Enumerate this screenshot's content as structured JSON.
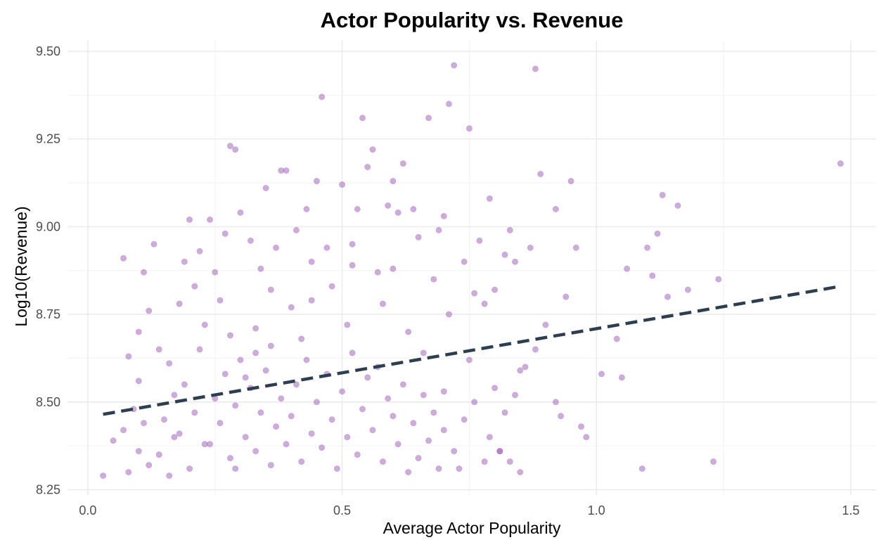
{
  "chart_data": {
    "type": "scatter",
    "title": "Actor Popularity vs. Revenue",
    "xlabel": "Average Actor Popularity",
    "ylabel": "Log10(Revenue)",
    "xlim": [
      -0.04,
      1.55
    ],
    "ylim": [
      8.235,
      9.53
    ],
    "x_ticks": [
      0.0,
      0.5,
      1.0,
      1.5
    ],
    "x_tick_labels": [
      "0.0",
      "0.5",
      "1.0",
      "1.5"
    ],
    "y_ticks": [
      8.25,
      8.5,
      8.75,
      9.0,
      9.25,
      9.5
    ],
    "y_tick_labels": [
      "8.25",
      "8.50",
      "8.75",
      "9.00",
      "9.25",
      "9.50"
    ],
    "grid": true,
    "legend": "none",
    "point_color": "#9b59b6",
    "point_opacity": 0.5,
    "trend_color": "#2c3e50",
    "series": [
      {
        "kind": "points",
        "points": [
          [
            0.03,
            8.29
          ],
          [
            0.05,
            8.39
          ],
          [
            0.07,
            8.42
          ],
          [
            0.08,
            8.3
          ],
          [
            0.09,
            8.48
          ],
          [
            0.1,
            8.36
          ],
          [
            0.11,
            8.44
          ],
          [
            0.12,
            8.32
          ],
          [
            0.07,
            8.91
          ],
          [
            0.08,
            8.63
          ],
          [
            0.11,
            8.87
          ],
          [
            0.13,
            8.95
          ],
          [
            0.1,
            8.56
          ],
          [
            0.12,
            8.76
          ],
          [
            0.1,
            8.7
          ],
          [
            0.14,
            8.35
          ],
          [
            0.15,
            8.45
          ],
          [
            0.16,
            8.61
          ],
          [
            0.17,
            8.52
          ],
          [
            0.18,
            8.41
          ],
          [
            0.19,
            8.55
          ],
          [
            0.2,
            8.31
          ],
          [
            0.21,
            8.47
          ],
          [
            0.22,
            8.65
          ],
          [
            0.18,
            8.78
          ],
          [
            0.19,
            8.9
          ],
          [
            0.2,
            9.02
          ],
          [
            0.22,
            8.93
          ],
          [
            0.24,
            9.02
          ],
          [
            0.21,
            8.83
          ],
          [
            0.23,
            8.72
          ],
          [
            0.16,
            8.29
          ],
          [
            0.24,
            8.38
          ],
          [
            0.25,
            8.51
          ],
          [
            0.26,
            8.44
          ],
          [
            0.27,
            8.58
          ],
          [
            0.28,
            8.34
          ],
          [
            0.29,
            8.49
          ],
          [
            0.3,
            8.62
          ],
          [
            0.31,
            8.4
          ],
          [
            0.27,
            8.98
          ],
          [
            0.28,
            9.23
          ],
          [
            0.29,
            9.22
          ],
          [
            0.3,
            9.04
          ],
          [
            0.32,
            8.96
          ],
          [
            0.25,
            8.87
          ],
          [
            0.26,
            8.79
          ],
          [
            0.28,
            8.69
          ],
          [
            0.32,
            8.54
          ],
          [
            0.33,
            8.36
          ],
          [
            0.34,
            8.47
          ],
          [
            0.35,
            8.59
          ],
          [
            0.36,
            8.32
          ],
          [
            0.37,
            8.43
          ],
          [
            0.38,
            8.51
          ],
          [
            0.39,
            8.38
          ],
          [
            0.33,
            8.71
          ],
          [
            0.34,
            8.88
          ],
          [
            0.35,
            9.11
          ],
          [
            0.37,
            8.94
          ],
          [
            0.38,
            9.16
          ],
          [
            0.39,
            9.16
          ],
          [
            0.36,
            8.82
          ],
          [
            0.33,
            8.64
          ],
          [
            0.4,
            8.46
          ],
          [
            0.41,
            8.55
          ],
          [
            0.42,
            8.33
          ],
          [
            0.43,
            8.62
          ],
          [
            0.44,
            8.41
          ],
          [
            0.45,
            8.5
          ],
          [
            0.46,
            8.37
          ],
          [
            0.47,
            8.58
          ],
          [
            0.4,
            8.77
          ],
          [
            0.41,
            8.99
          ],
          [
            0.43,
            9.05
          ],
          [
            0.44,
            8.9
          ],
          [
            0.45,
            9.13
          ],
          [
            0.46,
            9.37
          ],
          [
            0.47,
            8.94
          ],
          [
            0.42,
            8.68
          ],
          [
            0.48,
            8.45
          ],
          [
            0.49,
            8.31
          ],
          [
            0.5,
            8.53
          ],
          [
            0.51,
            8.4
          ],
          [
            0.52,
            8.64
          ],
          [
            0.53,
            8.35
          ],
          [
            0.54,
            8.48
          ],
          [
            0.55,
            8.57
          ],
          [
            0.48,
            8.83
          ],
          [
            0.5,
            9.12
          ],
          [
            0.52,
            8.95
          ],
          [
            0.53,
            9.05
          ],
          [
            0.54,
            9.31
          ],
          [
            0.55,
            9.17
          ],
          [
            0.56,
            9.22
          ],
          [
            0.51,
            8.72
          ],
          [
            0.56,
            8.42
          ],
          [
            0.57,
            8.6
          ],
          [
            0.58,
            8.33
          ],
          [
            0.59,
            8.51
          ],
          [
            0.6,
            8.46
          ],
          [
            0.61,
            8.38
          ],
          [
            0.62,
            8.55
          ],
          [
            0.63,
            8.3
          ],
          [
            0.57,
            8.87
          ],
          [
            0.59,
            9.06
          ],
          [
            0.6,
            9.13
          ],
          [
            0.61,
            9.04
          ],
          [
            0.62,
            9.18
          ],
          [
            0.64,
            9.05
          ],
          [
            0.58,
            8.78
          ],
          [
            0.63,
            8.7
          ],
          [
            0.64,
            8.44
          ],
          [
            0.65,
            8.34
          ],
          [
            0.66,
            8.52
          ],
          [
            0.67,
            8.39
          ],
          [
            0.68,
            8.47
          ],
          [
            0.69,
            8.31
          ],
          [
            0.7,
            8.42
          ],
          [
            0.72,
            8.36
          ],
          [
            0.65,
            8.97
          ],
          [
            0.67,
            9.31
          ],
          [
            0.69,
            8.99
          ],
          [
            0.7,
            9.03
          ],
          [
            0.71,
            9.35
          ],
          [
            0.72,
            9.46
          ],
          [
            0.68,
            8.85
          ],
          [
            0.71,
            8.75
          ],
          [
            0.73,
            8.31
          ],
          [
            0.74,
            8.45
          ],
          [
            0.75,
            9.28
          ],
          [
            0.74,
            8.9
          ],
          [
            0.76,
            8.5
          ],
          [
            0.77,
            8.96
          ],
          [
            0.78,
            8.78
          ],
          [
            0.75,
            8.62
          ],
          [
            0.78,
            8.33
          ],
          [
            0.79,
            8.4
          ],
          [
            0.8,
            8.54
          ],
          [
            0.81,
            8.36
          ],
          [
            0.82,
            8.47
          ],
          [
            0.83,
            8.33
          ],
          [
            0.84,
            8.52
          ],
          [
            0.85,
            8.3
          ],
          [
            0.79,
            9.08
          ],
          [
            0.8,
            8.82
          ],
          [
            0.82,
            8.92
          ],
          [
            0.83,
            8.99
          ],
          [
            0.84,
            8.9
          ],
          [
            0.85,
            8.59
          ],
          [
            0.86,
            8.6
          ],
          [
            0.88,
            8.65
          ],
          [
            0.87,
            8.94
          ],
          [
            0.88,
            9.45
          ],
          [
            0.89,
            9.15
          ],
          [
            0.9,
            8.72
          ],
          [
            0.92,
            9.05
          ],
          [
            0.92,
            8.5
          ],
          [
            0.93,
            8.46
          ],
          [
            0.94,
            8.8
          ],
          [
            0.95,
            9.13
          ],
          [
            0.96,
            8.94
          ],
          [
            0.97,
            8.43
          ],
          [
            0.98,
            8.4
          ],
          [
            1.01,
            8.58
          ],
          [
            1.04,
            8.68
          ],
          [
            1.05,
            8.57
          ],
          [
            1.06,
            8.88
          ],
          [
            1.09,
            8.31
          ],
          [
            1.1,
            8.94
          ],
          [
            1.11,
            8.86
          ],
          [
            1.12,
            8.98
          ],
          [
            1.13,
            9.09
          ],
          [
            1.14,
            8.8
          ],
          [
            1.16,
            9.06
          ],
          [
            1.18,
            8.82
          ],
          [
            1.23,
            8.33
          ],
          [
            1.24,
            8.85
          ],
          [
            1.48,
            9.18
          ],
          [
            0.14,
            8.65
          ],
          [
            0.17,
            8.4
          ],
          [
            0.23,
            8.38
          ],
          [
            0.36,
            8.66
          ],
          [
            0.44,
            8.79
          ],
          [
            0.52,
            8.89
          ],
          [
            0.6,
            8.88
          ],
          [
            0.66,
            8.64
          ],
          [
            0.7,
            8.53
          ],
          [
            0.76,
            8.81
          ],
          [
            0.81,
            8.36
          ],
          [
            0.29,
            8.31
          ],
          [
            0.31,
            8.57
          ]
        ]
      },
      {
        "kind": "trend",
        "style": "dashed",
        "points": [
          [
            0.03,
            8.465
          ],
          [
            1.48,
            8.83
          ]
        ]
      }
    ]
  }
}
